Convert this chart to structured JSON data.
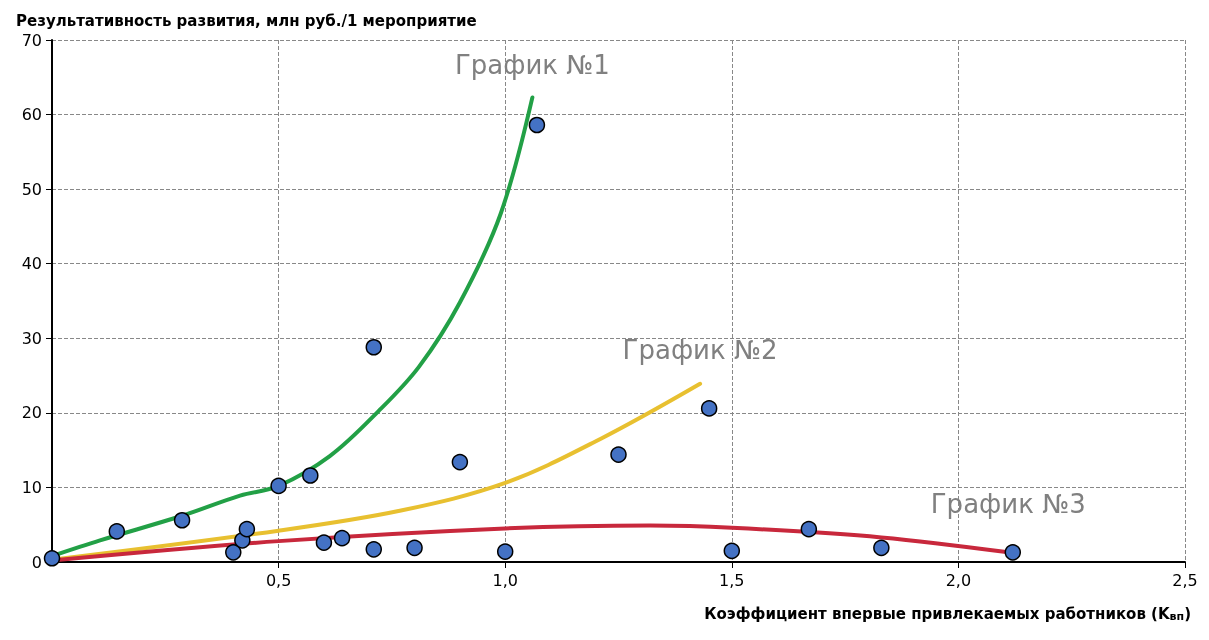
{
  "chart_data": {
    "type": "scatter",
    "ylabel": "Результативность развития, млн руб./1 мероприятие",
    "xlabel": "Коэффициент впервые привлекаемых работников (K$_{вп}$)",
    "xlim": [
      0,
      2.5
    ],
    "xticks": [
      {
        "value": 0.5,
        "label": "0,5"
      },
      {
        "value": 1,
        "label": "1,0"
      },
      {
        "value": 1.5,
        "label": "1,5"
      },
      {
        "value": 2,
        "label": "2,0"
      },
      {
        "value": 2.5,
        "label": "2,5"
      }
    ],
    "ylim": [
      0,
      70
    ],
    "yticks": [
      0,
      10,
      20,
      30,
      40,
      50,
      60,
      70
    ],
    "grid": true,
    "marker": "circle",
    "series": [
      {
        "type": "line",
        "color": "#22a046",
        "marker": "none",
        "x": [
          0,
          0.106,
          0.287,
          0.415,
          0.5,
          0.613,
          0.72,
          0.81,
          0.9,
          0.99,
          1.06
        ],
        "values": [
          0.8,
          2.9,
          6.2,
          8.9,
          10.2,
          14.2,
          20.2,
          26.2,
          34.8,
          46.7,
          62.3
        ]
      },
      {
        "type": "line",
        "color": "#e8c030",
        "marker": "none",
        "x": [
          0,
          0.5,
          0.77,
          1.0,
          1.21,
          1.43
        ],
        "values": [
          0.3,
          4.2,
          6.9,
          10.6,
          16.5,
          23.9
        ]
      },
      {
        "type": "line",
        "color": "#c8283c",
        "marker": "none",
        "x": [
          0,
          0.5,
          1.0,
          1.32,
          1.5,
          1.83,
          2.11
        ],
        "values": [
          0.2,
          2.8,
          4.5,
          4.9,
          4.6,
          3.3,
          1.3
        ]
      },
      {
        "color": "#4472c4",
        "x": [
          0,
          0.143,
          0.287,
          0.4,
          0.42,
          0.43,
          0.5,
          0.57,
          0.6,
          0.64,
          0.71,
          0.8,
          0.9,
          0.71,
          1.07,
          1.0,
          1.25,
          1.45,
          1.5,
          1.67,
          1.83,
          2.12
        ],
        "values": [
          0.5,
          4.1,
          5.6,
          1.3,
          2.9,
          4.4,
          10.2,
          11.6,
          2.6,
          3.2,
          1.7,
          1.9,
          13.4,
          28.8,
          58.6,
          1.4,
          14.4,
          20.6,
          1.5,
          4.4,
          1.9,
          1.3
        ]
      }
    ],
    "annotations": [
      "График №1",
      "График №2",
      "График №3"
    ]
  }
}
